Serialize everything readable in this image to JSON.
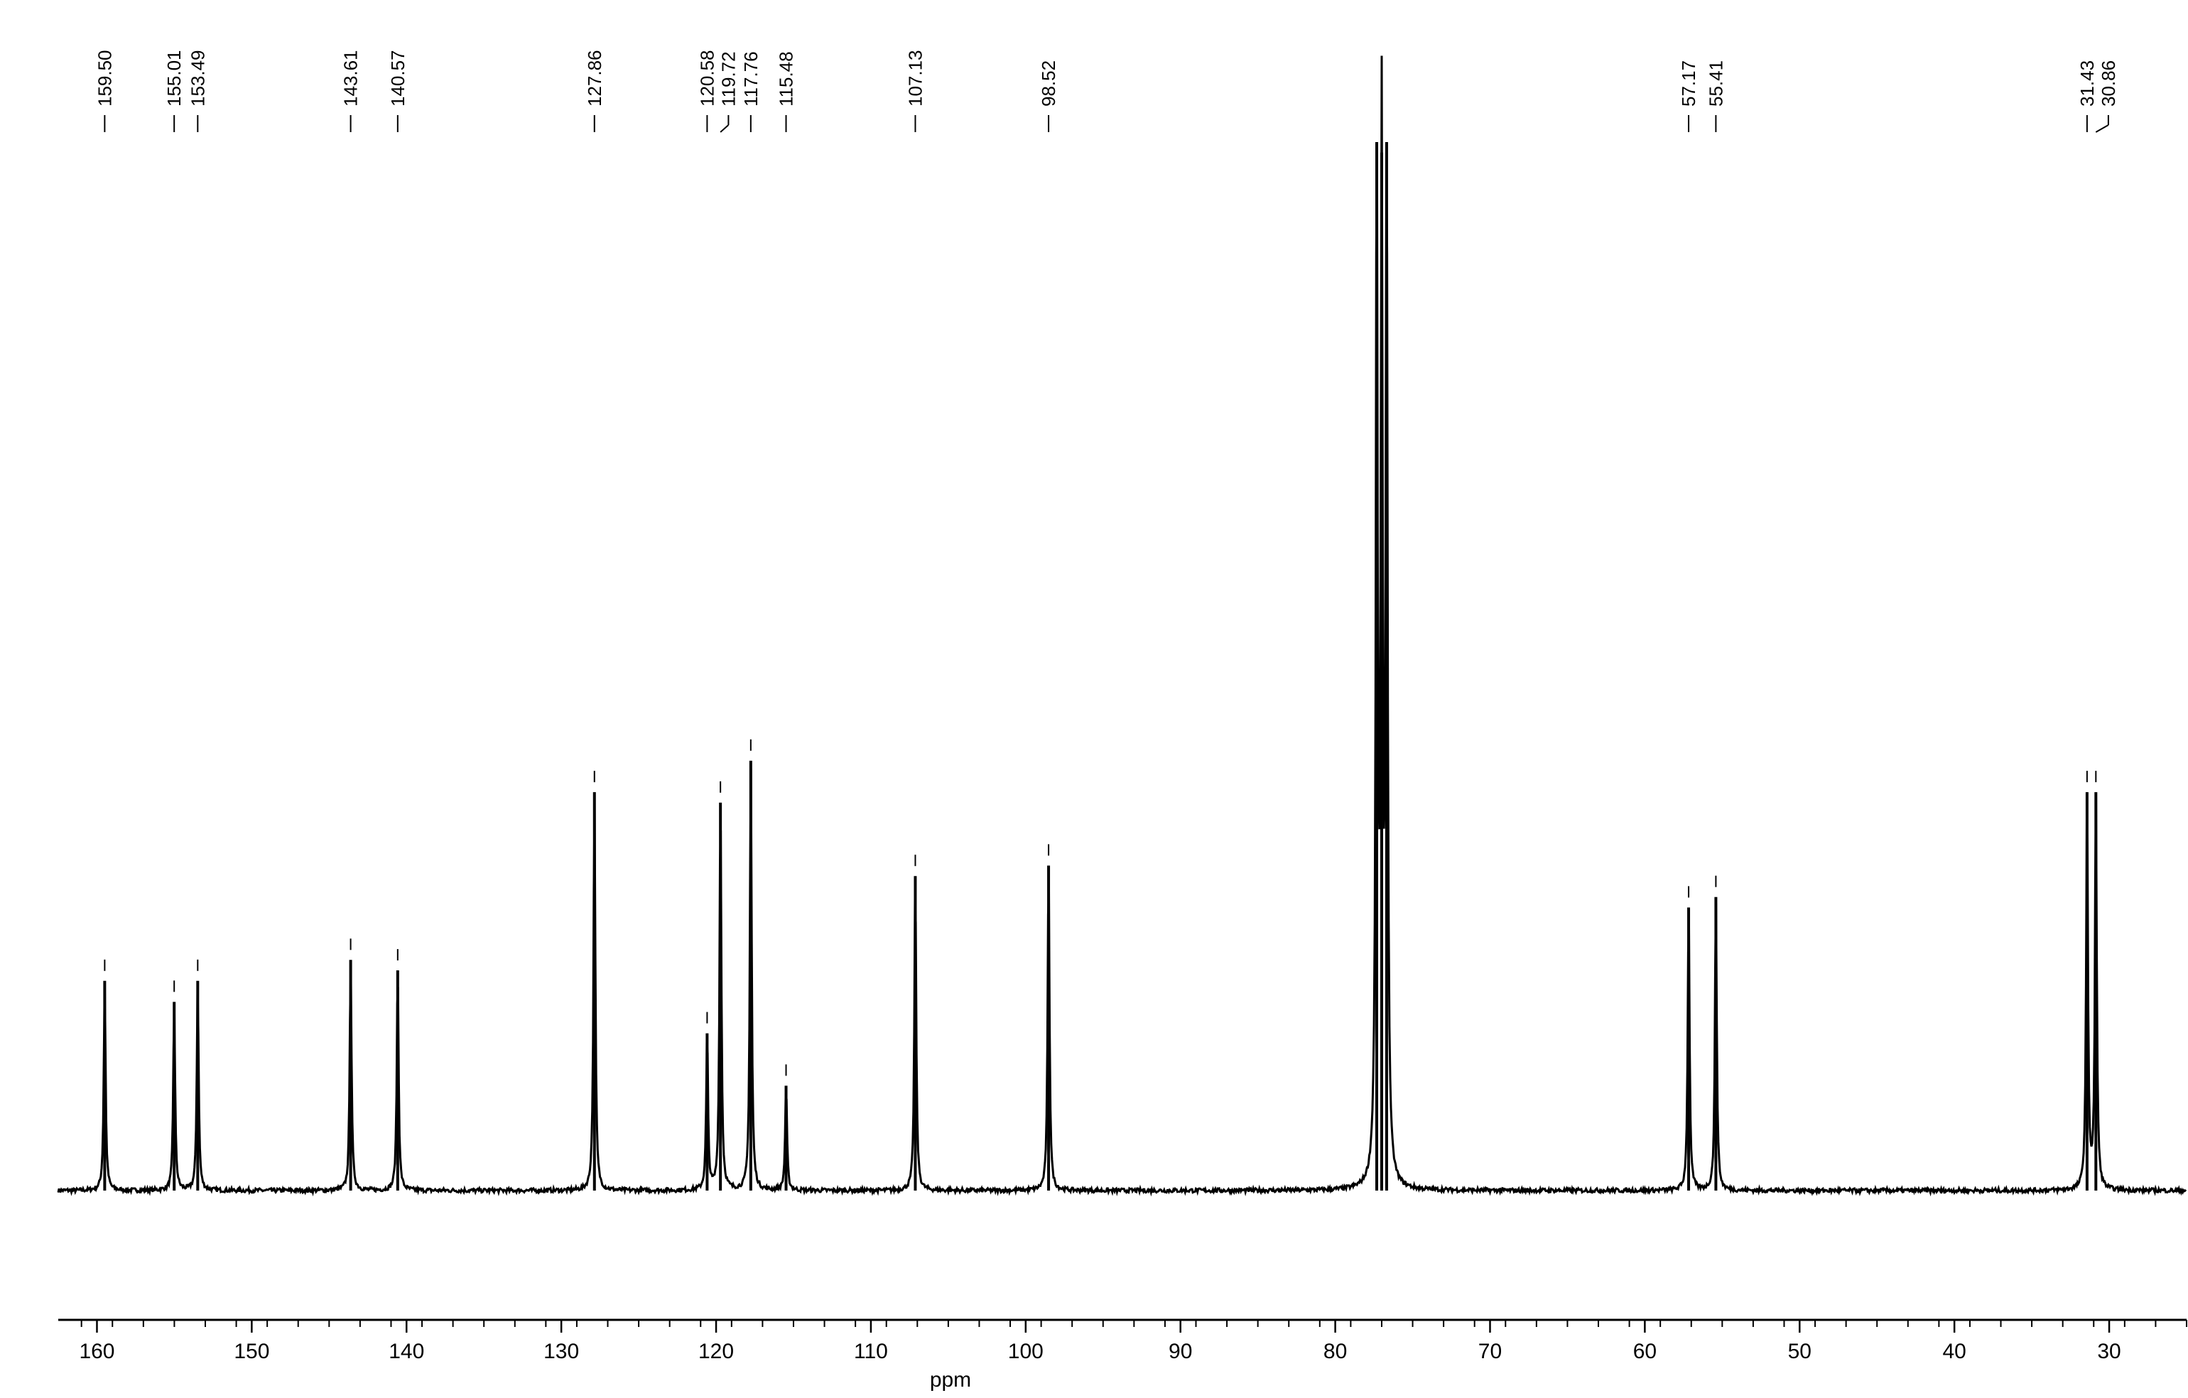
{
  "chart_data": {
    "type": "line",
    "title": "",
    "xlabel": "ppm",
    "ylabel": "",
    "x_reversed": true,
    "xlim": [
      162.5,
      25.0
    ],
    "x_ticks": [
      160,
      150,
      140,
      130,
      120,
      110,
      100,
      90,
      80,
      70,
      60,
      50,
      40,
      30
    ],
    "minor_tick_step": 2,
    "grid": false,
    "legend": "none",
    "y_normalized": true,
    "peak_labels": [
      "159.50",
      "155.01",
      "153.49",
      "143.61",
      "140.57",
      "127.86",
      "120.58",
      "119.72",
      "117.76",
      "115.48",
      "107.13",
      "98.52",
      "57.17",
      "55.41",
      "31.43",
      "30.86"
    ],
    "peaks": [
      {
        "ppm": 159.5,
        "intensity": 0.2,
        "label": "159.50"
      },
      {
        "ppm": 155.01,
        "intensity": 0.18,
        "label": "155.01"
      },
      {
        "ppm": 153.49,
        "intensity": 0.2,
        "label": "153.49"
      },
      {
        "ppm": 143.61,
        "intensity": 0.22,
        "label": "143.61"
      },
      {
        "ppm": 140.57,
        "intensity": 0.21,
        "label": "140.57"
      },
      {
        "ppm": 127.86,
        "intensity": 0.38,
        "label": "127.86"
      },
      {
        "ppm": 120.58,
        "intensity": 0.15,
        "label": "120.58"
      },
      {
        "ppm": 119.72,
        "intensity": 0.37,
        "label": "119.72"
      },
      {
        "ppm": 117.76,
        "intensity": 0.41,
        "label": "117.76"
      },
      {
        "ppm": 115.48,
        "intensity": 0.1,
        "label": "115.48"
      },
      {
        "ppm": 107.13,
        "intensity": 0.3,
        "label": "107.13"
      },
      {
        "ppm": 98.52,
        "intensity": 0.31,
        "label": "98.52"
      },
      {
        "ppm": 77.32,
        "intensity": 1.0,
        "label": ""
      },
      {
        "ppm": 77.0,
        "intensity": 0.99,
        "label": ""
      },
      {
        "ppm": 76.68,
        "intensity": 1.0,
        "label": ""
      },
      {
        "ppm": 57.17,
        "intensity": 0.27,
        "label": "57.17"
      },
      {
        "ppm": 55.41,
        "intensity": 0.28,
        "label": "55.41"
      },
      {
        "ppm": 31.43,
        "intensity": 0.38,
        "label": "31.43"
      },
      {
        "ppm": 30.86,
        "intensity": 0.38,
        "label": "30.86"
      }
    ]
  }
}
